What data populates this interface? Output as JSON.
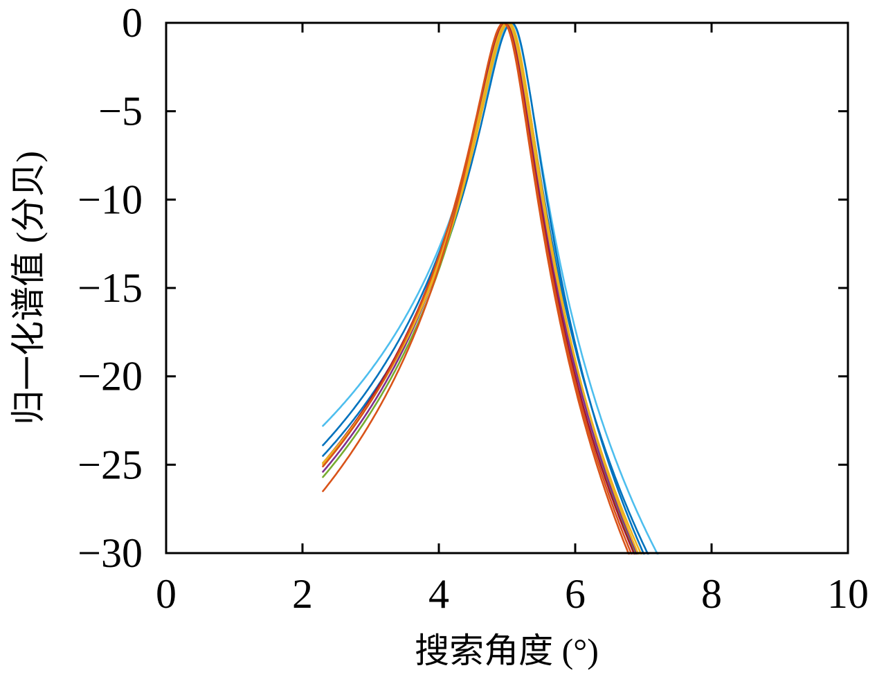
{
  "figure": {
    "background": "#ffffff",
    "axis_color": "#000000"
  },
  "chart_data": {
    "type": "line",
    "title": "",
    "xlabel": "搜索角度 (°)",
    "ylabel": "归一化谱值 (分贝)",
    "xlim": [
      0,
      10
    ],
    "ylim": [
      -30,
      0
    ],
    "xticks": [
      0,
      2,
      4,
      6,
      8,
      10
    ],
    "yticks": [
      0,
      -5,
      -10,
      -15,
      -20,
      -25,
      -30
    ],
    "grid": false,
    "legend": "none",
    "box": true,
    "tick_direction": "in",
    "curve_half_width": 0.35,
    "series_note": "Normalized spectra peaks; each curve rises from its start point to a 0 dB peak near 5° then falls below -30 dB",
    "series": [
      {
        "name": "curve-1",
        "color_name": "light-blue",
        "color": "#4DBEEE",
        "start_x": 2.3,
        "start_db": -22.8,
        "peak_x": 5.06,
        "peak_db": 0,
        "x_at_minus30dB": 7.2
      },
      {
        "name": "curve-2",
        "color_name": "blue",
        "color": "#0072BD",
        "start_x": 2.3,
        "start_db": -23.9,
        "peak_x": 5.02,
        "peak_db": 0,
        "x_at_minus30dB": 7.06
      },
      {
        "name": "curve-3",
        "color_name": "blue",
        "color": "#0072BD",
        "start_x": 2.3,
        "start_db": -24.5,
        "peak_x": 5.07,
        "peak_db": 0,
        "x_at_minus30dB": 7.0
      },
      {
        "name": "curve-4",
        "color_name": "green",
        "color": "#77AC30",
        "start_x": 2.3,
        "start_db": -25.7,
        "peak_x": 5.01,
        "peak_db": 0,
        "x_at_minus30dB": 6.88
      },
      {
        "name": "curve-5",
        "color_name": "purple",
        "color": "#7E2F8E",
        "start_x": 2.3,
        "start_db": -25.4,
        "peak_x": 4.99,
        "peak_db": 0,
        "x_at_minus30dB": 6.9
      },
      {
        "name": "curve-6",
        "color_name": "dark-red",
        "color": "#A2142F",
        "start_x": 2.3,
        "start_db": -24.9,
        "peak_x": 4.97,
        "peak_db": 0,
        "x_at_minus30dB": 6.86
      },
      {
        "name": "curve-7",
        "color_name": "yellow",
        "color": "#EDB120",
        "start_x": 2.3,
        "start_db": -24.9,
        "peak_x": 5.03,
        "peak_db": 0,
        "x_at_minus30dB": 6.92
      },
      {
        "name": "curve-8",
        "color_name": "yellow",
        "color": "#EDB120",
        "start_x": 2.3,
        "start_db": -25.0,
        "peak_x": 5.0,
        "peak_db": 0,
        "x_at_minus30dB": 6.96
      },
      {
        "name": "curve-9",
        "color_name": "orange",
        "color": "#D95319",
        "start_x": 2.3,
        "start_db": -25.1,
        "peak_x": 4.96,
        "peak_db": 0,
        "x_at_minus30dB": 6.82
      },
      {
        "name": "curve-10",
        "color_name": "orange",
        "color": "#D95319",
        "start_x": 2.3,
        "start_db": -26.5,
        "peak_x": 4.95,
        "peak_db": 0,
        "x_at_minus30dB": 6.78
      }
    ]
  }
}
